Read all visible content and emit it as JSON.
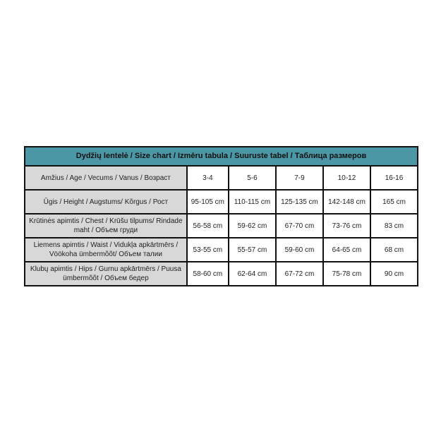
{
  "title": "Dydžių lentelė / Size chart / Izmēru tabula / Suuruste tabel / Таблица размеров",
  "colors": {
    "header": "#4b97a5",
    "label_bg": "#d8d8d8"
  },
  "rows": [
    {
      "label": "Amžius / Age / Vecums / Vanus / Возраст",
      "values": [
        "3-4",
        "5-6",
        "7-9",
        "10-12",
        "16-16"
      ]
    },
    {
      "label": "Ūgis / Height / Augstums/ Kõrgus / Рост",
      "values": [
        "95-105 cm",
        "110-115 cm",
        "125-135 cm",
        "142-148 cm",
        "165 cm"
      ]
    },
    {
      "label": "Krūtinės apimtis / Chest / Krūšu tilpums/  Rindade maht / Объем груди",
      "values": [
        "56-58 cm",
        "59-62 cm",
        "67-70 cm",
        "73-76 cm",
        "83 cm"
      ]
    },
    {
      "label": "Liemens apimtis / Waist / Vidukļa apkārtmērs / Vöökoha ümbermõõt/ Объем талии",
      "values": [
        "53-55 cm",
        "55-57 cm",
        "59-60 cm",
        "64-65 cm",
        "68 cm"
      ]
    },
    {
      "label": "Klubų apimtis / Hips / Gurnu apkārtmērs / Puusa ümbermõõt / Объем бедер",
      "values": [
        "58-60 cm",
        "62-64 cm",
        "67-72 cm",
        "75-78 cm",
        "90 cm"
      ]
    }
  ]
}
